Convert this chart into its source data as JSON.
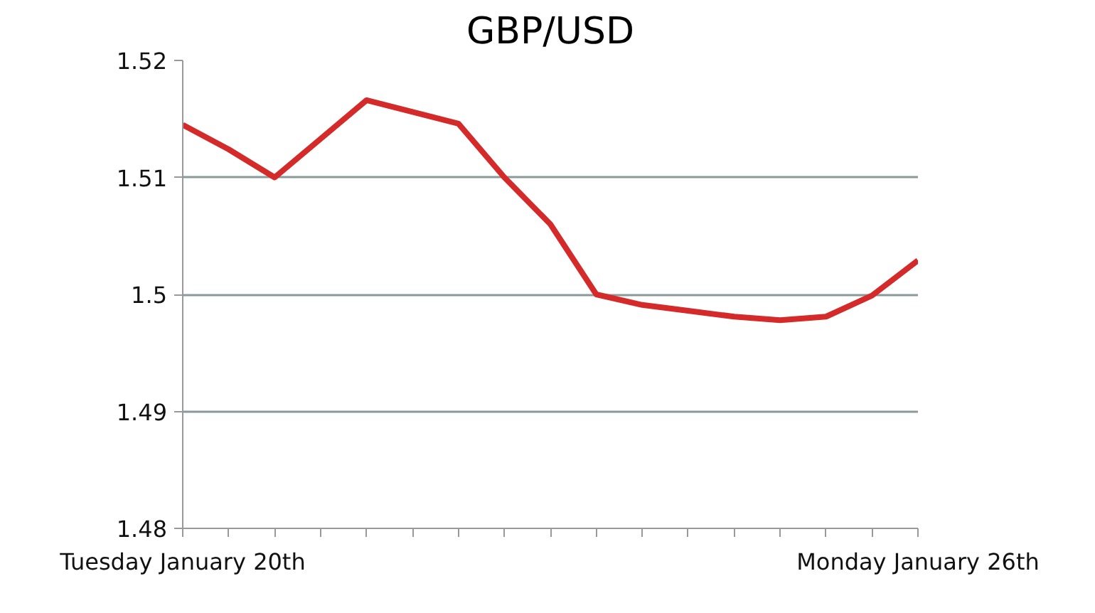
{
  "chart_data": {
    "type": "line",
    "title": "GBP/USD",
    "categories": [
      "Tuesday January 20th",
      null,
      null,
      null,
      null,
      null,
      null,
      null,
      null,
      null,
      null,
      null,
      null,
      null,
      null,
      null,
      "Monday January 26th"
    ],
    "series": [
      {
        "color": "#d42a2a",
        "values": [
          1.5145,
          1.5124,
          1.51,
          1.5133,
          1.5166,
          1.5156,
          1.5146,
          1.51,
          1.506,
          1.5,
          1.4991,
          1.4986,
          1.4981,
          1.4978,
          1.4981,
          1.4999,
          1.5029
        ]
      }
    ],
    "ylim": [
      1.48,
      1.52
    ],
    "yticks": [
      1.48,
      1.49,
      1.51,
      1.52,
      {
        "value": 1.5,
        "label": "1.5"
      }
    ],
    "grid": "y",
    "marker": "none",
    "line_style": "solid"
  }
}
